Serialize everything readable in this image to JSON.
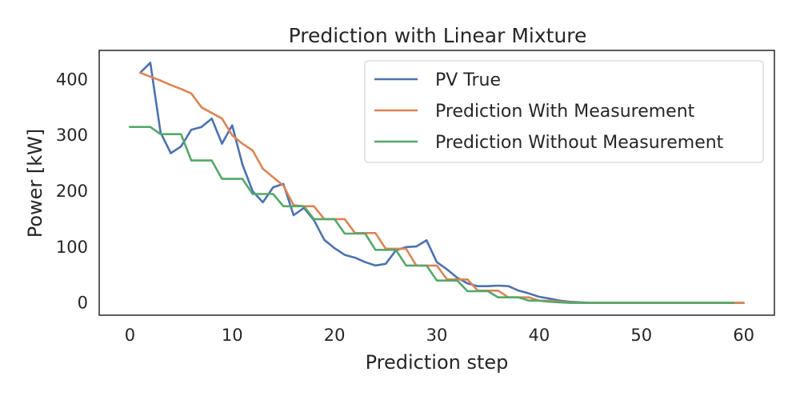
{
  "chart_data": {
    "type": "line",
    "title": "Prediction with Linear Mixture",
    "xlabel": "Prediction step",
    "ylabel": "Power [kW]",
    "xlim": [
      -3,
      63
    ],
    "ylim": [
      -22,
      452
    ],
    "xticks": [
      0,
      10,
      20,
      30,
      40,
      50,
      60
    ],
    "yticks": [
      0,
      100,
      200,
      300,
      400
    ],
    "grid": false,
    "legend": "top-right",
    "series": [
      {
        "name": "PV True",
        "color": "#4c72b0",
        "x": [
          1,
          2,
          3,
          4,
          5,
          6,
          7,
          8,
          9,
          10,
          11,
          12,
          13,
          14,
          15,
          16,
          17,
          18,
          19,
          20,
          21,
          22,
          23,
          24,
          25,
          26,
          27,
          28,
          29,
          30,
          31,
          32,
          33,
          34,
          35,
          36,
          37,
          38,
          39,
          40,
          41,
          42,
          43,
          44,
          45,
          46,
          47,
          48,
          49,
          50,
          51,
          52,
          53,
          54,
          55,
          56,
          57,
          58,
          59,
          60
        ],
        "y": [
          412,
          430,
          305,
          268,
          280,
          310,
          315,
          330,
          285,
          318,
          248,
          200,
          180,
          207,
          213,
          157,
          170,
          148,
          113,
          98,
          86,
          81,
          73,
          67,
          70,
          94,
          100,
          101,
          112,
          73,
          60,
          45,
          35,
          30,
          30,
          31,
          30,
          22,
          17,
          11,
          8,
          4,
          2,
          1,
          0,
          0,
          0,
          0,
          0,
          0,
          0,
          0,
          0,
          0,
          0,
          0,
          0,
          0,
          0,
          0
        ]
      },
      {
        "name": "Prediction With Measurement",
        "color": "#dd8452",
        "x": [
          1,
          2,
          3,
          4,
          5,
          6,
          7,
          8,
          9,
          10,
          11,
          12,
          13,
          14,
          15,
          16,
          17,
          18,
          19,
          20,
          21,
          22,
          23,
          24,
          25,
          26,
          27,
          28,
          29,
          30,
          31,
          32,
          33,
          34,
          35,
          36,
          37,
          38,
          39,
          40,
          41,
          42,
          43,
          44,
          45,
          46,
          47,
          48,
          49,
          50,
          51,
          52,
          53,
          54,
          55,
          56,
          57,
          58,
          59,
          60
        ],
        "y": [
          412,
          405,
          398,
          390,
          383,
          375,
          350,
          340,
          330,
          300,
          285,
          273,
          240,
          225,
          210,
          175,
          173,
          173,
          150,
          150,
          150,
          125,
          125,
          125,
          97,
          97,
          97,
          67,
          67,
          67,
          42,
          42,
          42,
          22,
          22,
          22,
          10,
          10,
          10,
          4,
          4,
          2,
          1,
          0,
          0,
          0,
          0,
          0,
          0,
          0,
          0,
          0,
          0,
          0,
          0,
          0,
          0,
          0,
          0,
          0
        ]
      },
      {
        "name": "Prediction Without Measurement",
        "color": "#55a868",
        "x": [
          0,
          1,
          2,
          3,
          4,
          5,
          6,
          7,
          8,
          9,
          10,
          11,
          12,
          13,
          14,
          15,
          16,
          17,
          18,
          19,
          20,
          21,
          22,
          23,
          24,
          25,
          26,
          27,
          28,
          29,
          30,
          31,
          32,
          33,
          34,
          35,
          36,
          37,
          38,
          39,
          40,
          41,
          42,
          43,
          44,
          45,
          46,
          47,
          48,
          49,
          50,
          51,
          52,
          53,
          54,
          55,
          56,
          57,
          58,
          59
        ],
        "y": [
          315,
          315,
          315,
          302,
          302,
          302,
          255,
          255,
          255,
          222,
          222,
          222,
          195,
          195,
          195,
          173,
          173,
          173,
          150,
          150,
          150,
          124,
          124,
          124,
          95,
          95,
          95,
          67,
          67,
          67,
          40,
          40,
          40,
          21,
          21,
          21,
          10,
          10,
          10,
          4,
          4,
          2,
          1,
          0,
          0,
          0,
          0,
          0,
          0,
          0,
          0,
          0,
          0,
          0,
          0,
          0,
          0,
          0,
          0,
          0
        ]
      }
    ]
  }
}
